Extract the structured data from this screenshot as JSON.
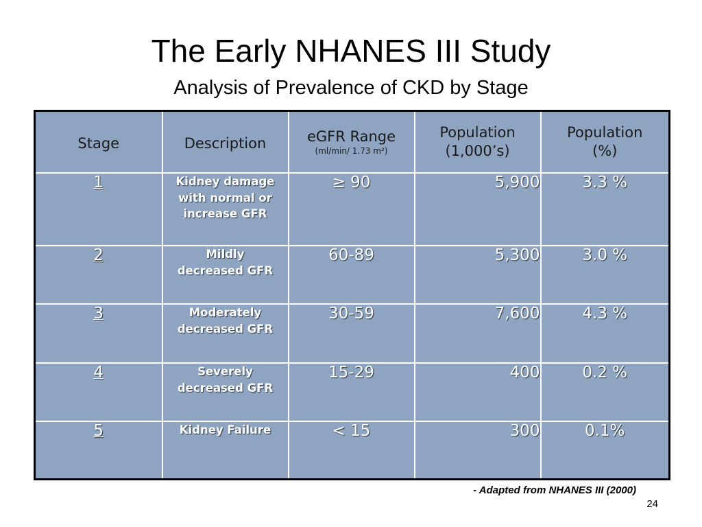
{
  "title": "The Early NHANES III Study",
  "subtitle": "Analysis of Prevalence of CKD by Stage",
  "table": {
    "headers": {
      "stage": "Stage",
      "description": "Description",
      "egfr_main": "eGFR Range",
      "egfr_unit": "(ml/min/ 1.73 m²)",
      "pop_thousands_line1": "Population",
      "pop_thousands_line2": "(1,000’s)",
      "pop_pct_line1": "Population",
      "pop_pct_line2": "(%)"
    },
    "rows": [
      {
        "stage": "1",
        "description": "Kidney damage with normal or increase GFR",
        "egfr": "≥ 90",
        "population": "5,900",
        "percent": "3.3 %"
      },
      {
        "stage": "2",
        "description": "Mildly decreased GFR",
        "egfr": "60-89",
        "population": "5,300",
        "percent": "3.0 %"
      },
      {
        "stage": "3",
        "description": "Moderately decreased GFR",
        "egfr": "30-59",
        "population": "7,600",
        "percent": "4.3 %"
      },
      {
        "stage": "4",
        "description": "Severely decreased GFR",
        "egfr": "15-29",
        "population": "400",
        "percent": "0.2 %"
      },
      {
        "stage": "5",
        "description": "Kidney Failure",
        "egfr": "< 15",
        "population": "300",
        "percent": "0.1%"
      }
    ]
  },
  "footer": "- Adapted from NHANES III (2000)",
  "page_number": "24",
  "colors": {
    "table_fill": "#8ea4c0",
    "grid_lines": "#ffffff",
    "outer_border": "#000000"
  }
}
